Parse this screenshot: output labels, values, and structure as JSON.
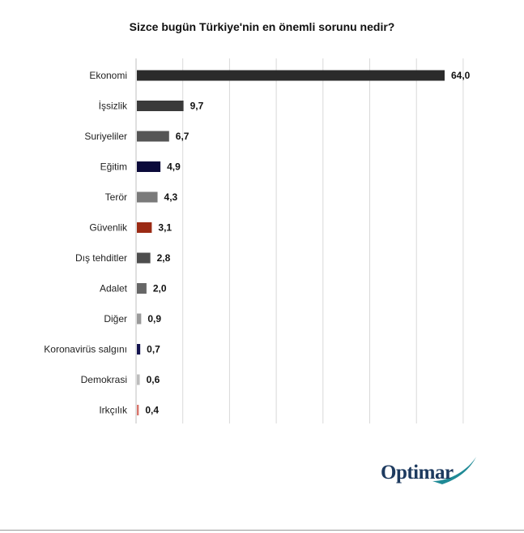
{
  "chart_data": {
    "type": "bar",
    "orientation": "horizontal",
    "title": "Sizce bugün Türkiye'nin en önemli sorunu nedir?",
    "categories": [
      "Ekonomi",
      "İşsizlik",
      "Suriyeliler",
      "Eğitim",
      "Terör",
      "Güvenlik",
      "Dış tehditler",
      "Adalet",
      "Diğer",
      "Koronavirüs salgını",
      "Demokrasi",
      "Irkçılık"
    ],
    "values": [
      64.0,
      9.7,
      6.7,
      4.9,
      4.3,
      3.1,
      2.8,
      2.0,
      0.9,
      0.7,
      0.6,
      0.4
    ],
    "value_labels": [
      "64,0",
      "9,7",
      "6,7",
      "4,9",
      "4,3",
      "3,1",
      "2,8",
      "2,0",
      "0,9",
      "0,7",
      "0,6",
      "0,4"
    ],
    "bar_colors": [
      "#2b2b2b",
      "#3a3a3a",
      "#555555",
      "#0b0a3a",
      "#7a7a7a",
      "#9b2a14",
      "#4d4d4d",
      "#666666",
      "#9a9a9a",
      "#141450",
      "#bdbdbd",
      "#d9746a"
    ],
    "xlim": [
      0,
      68
    ],
    "grid": true,
    "legend": "none"
  },
  "logo": {
    "text": "Optimar",
    "accent_color": "#1f8a96",
    "text_color": "#1d3a5f"
  }
}
